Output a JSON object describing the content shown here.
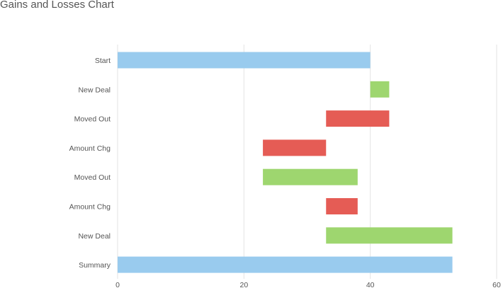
{
  "colors": {
    "total": "#99cbee",
    "increase": "#9ed66f",
    "decrease": "#e55c55",
    "grid": "#e3e3e3",
    "text": "#555555"
  },
  "chart_data": {
    "type": "bar",
    "orientation": "horizontal",
    "subtype": "waterfall",
    "title": "Gains and Losses Chart",
    "categories": [
      "Start",
      "New Deal",
      "Moved Out",
      "Amount Chg",
      "Moved Out",
      "Amount Chg",
      "New Deal",
      "Summary"
    ],
    "bars": [
      {
        "category": "Start",
        "from": 0,
        "to": 40,
        "kind": "total"
      },
      {
        "category": "New Deal",
        "from": 40,
        "to": 43,
        "kind": "increase"
      },
      {
        "category": "Moved Out",
        "from": 33,
        "to": 43,
        "kind": "decrease"
      },
      {
        "category": "Amount Chg",
        "from": 23,
        "to": 33,
        "kind": "decrease"
      },
      {
        "category": "Moved Out",
        "from": 23,
        "to": 38,
        "kind": "increase"
      },
      {
        "category": "Amount Chg",
        "from": 33,
        "to": 38,
        "kind": "decrease"
      },
      {
        "category": "New Deal",
        "from": 33,
        "to": 53,
        "kind": "increase"
      },
      {
        "category": "Summary",
        "from": 0,
        "to": 53,
        "kind": "total"
      }
    ],
    "x_ticks": [
      0,
      20,
      40,
      60
    ],
    "xlim": [
      0,
      60
    ],
    "grid": true,
    "legend": "none"
  }
}
